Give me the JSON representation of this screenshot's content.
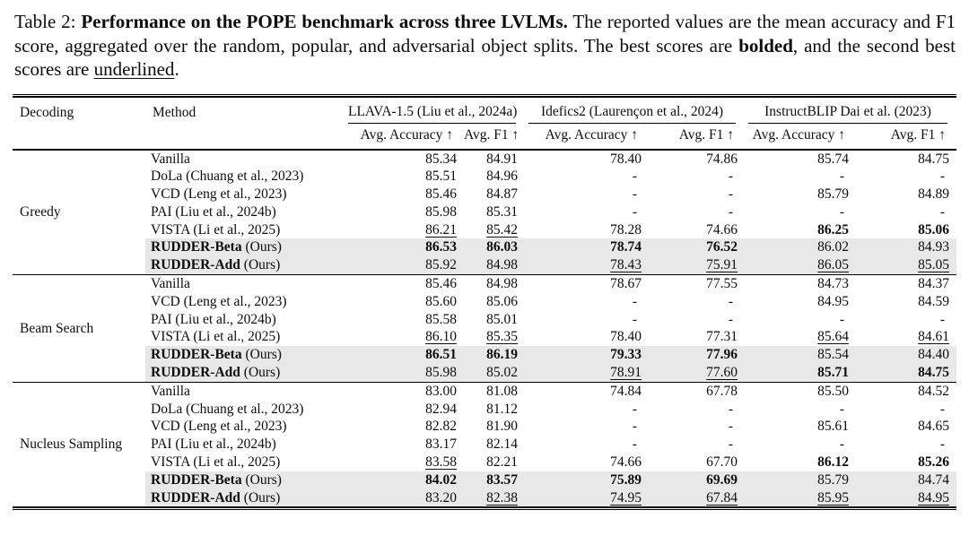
{
  "caption": {
    "segments": [
      {
        "text": "Table 2: "
      },
      {
        "text": "Performance on the POPE benchmark across three LVLMs."
      },
      {
        "text": " The reported values are the mean accuracy and F1 score, aggregated over the random, popular, and adversarial object splits. The best scores are "
      },
      {
        "text": "bolded"
      },
      {
        "text": ", and the second best scores are "
      },
      {
        "text": "underlined"
      },
      {
        "text": "."
      }
    ]
  },
  "table": {
    "header": {
      "decoding": "Decoding",
      "method": "Method",
      "model_groups": [
        {
          "label": "LLAVA-1.5 (Liu et al., 2024a)"
        },
        {
          "label": "Idefics2 (Laurençon et al., 2024)"
        },
        {
          "label": "InstructBLIP Dai et al. (2023)"
        }
      ],
      "metric_accuracy": "Avg. Accuracy ↑",
      "metric_f1": "Avg. F1 ↑"
    },
    "legend": {
      "best": "bold",
      "second_best": "underline"
    },
    "groups": [
      {
        "label": "Greedy",
        "rows": [
          {
            "method": "Vanilla",
            "values": [
              "85.34",
              "84.91",
              "78.40",
              "74.86",
              "85.74",
              "84.75"
            ],
            "marks": [
              "p",
              "p",
              "p",
              "p",
              "p",
              "p"
            ]
          },
          {
            "method": "DoLa (Chuang et al., 2023)",
            "values": [
              "85.51",
              "84.96",
              "-",
              "-",
              "-",
              "-"
            ],
            "marks": [
              "p",
              "p",
              "p",
              "p",
              "p",
              "p"
            ]
          },
          {
            "method": "VCD (Leng et al., 2023)",
            "values": [
              "85.46",
              "84.87",
              "-",
              "-",
              "85.79",
              "84.89"
            ],
            "marks": [
              "p",
              "p",
              "p",
              "p",
              "p",
              "p"
            ]
          },
          {
            "method": "PAI (Liu et al., 2024b)",
            "values": [
              "85.98",
              "85.31",
              "-",
              "-",
              "-",
              "-"
            ],
            "marks": [
              "p",
              "p",
              "p",
              "p",
              "p",
              "p"
            ]
          },
          {
            "method": "VISTA (Li et al., 2025)",
            "values": [
              "86.21",
              "85.42",
              "78.28",
              "74.66",
              "86.25",
              "85.06"
            ],
            "marks": [
              "u",
              "u",
              "p",
              "p",
              "b",
              "b"
            ]
          },
          {
            "method_bold": "RUDDER-Beta",
            "method": " (Ours)",
            "highlight": true,
            "values": [
              "86.53",
              "86.03",
              "78.74",
              "76.52",
              "86.02",
              "84.93"
            ],
            "marks": [
              "b",
              "b",
              "b",
              "b",
              "p",
              "p"
            ]
          },
          {
            "method_bold": "RUDDER-Add",
            "method": " (Ours)",
            "highlight": true,
            "values": [
              "85.92",
              "84.98",
              "78.43",
              "75.91",
              "86.05",
              "85.05"
            ],
            "marks": [
              "p",
              "p",
              "u",
              "u",
              "u",
              "u"
            ]
          }
        ]
      },
      {
        "label": "Beam Search",
        "rows": [
          {
            "method": "Vanilla",
            "values": [
              "85.46",
              "84.98",
              "78.67",
              "77.55",
              "84.73",
              "84.37"
            ],
            "marks": [
              "p",
              "p",
              "p",
              "p",
              "p",
              "p"
            ]
          },
          {
            "method": "VCD (Leng et al., 2023)",
            "values": [
              "85.60",
              "85.06",
              "-",
              "-",
              "84.95",
              "84.59"
            ],
            "marks": [
              "p",
              "p",
              "p",
              "p",
              "p",
              "p"
            ]
          },
          {
            "method": "PAI (Liu et al., 2024b)",
            "values": [
              "85.58",
              "85.01",
              "-",
              "-",
              "-",
              "-"
            ],
            "marks": [
              "p",
              "p",
              "p",
              "p",
              "p",
              "p"
            ]
          },
          {
            "method": "VISTA (Li et al., 2025)",
            "values": [
              "86.10",
              "85.35",
              "78.40",
              "77.31",
              "85.64",
              "84.61"
            ],
            "marks": [
              "u",
              "u",
              "p",
              "p",
              "u",
              "u"
            ]
          },
          {
            "method_bold": "RUDDER-Beta",
            "method": " (Ours)",
            "highlight": true,
            "values": [
              "86.51",
              "86.19",
              "79.33",
              "77.96",
              "85.54",
              "84.40"
            ],
            "marks": [
              "b",
              "b",
              "b",
              "b",
              "p",
              "p"
            ]
          },
          {
            "method_bold": "RUDDER-Add",
            "method": " (Ours)",
            "highlight": true,
            "values": [
              "85.98",
              "85.02",
              "78.91",
              "77.60",
              "85.71",
              "84.75"
            ],
            "marks": [
              "p",
              "p",
              "u",
              "u",
              "b",
              "b"
            ]
          }
        ]
      },
      {
        "label": "Nucleus Sampling",
        "rows": [
          {
            "method": "Vanilla",
            "values": [
              "83.00",
              "81.08",
              "74.84",
              "67.78",
              "85.50",
              "84.52"
            ],
            "marks": [
              "p",
              "p",
              "p",
              "p",
              "p",
              "p"
            ]
          },
          {
            "method": "DoLa (Chuang et al., 2023)",
            "values": [
              "82.94",
              "81.12",
              "-",
              "-",
              "-",
              "-"
            ],
            "marks": [
              "p",
              "p",
              "p",
              "p",
              "p",
              "p"
            ]
          },
          {
            "method": "VCD (Leng et al., 2023)",
            "values": [
              "82.82",
              "81.90",
              "-",
              "-",
              "85.61",
              "84.65"
            ],
            "marks": [
              "p",
              "p",
              "p",
              "p",
              "p",
              "p"
            ]
          },
          {
            "method": "PAI (Liu et al., 2024b)",
            "values": [
              "83.17",
              "82.14",
              "-",
              "-",
              "-",
              "-"
            ],
            "marks": [
              "p",
              "p",
              "p",
              "p",
              "p",
              "p"
            ]
          },
          {
            "method": "VISTA (Li et al., 2025)",
            "values": [
              "83.58",
              "82.21",
              "74.66",
              "67.70",
              "86.12",
              "85.26"
            ],
            "marks": [
              "u",
              "p",
              "p",
              "p",
              "b",
              "b"
            ]
          },
          {
            "method_bold": "RUDDER-Beta",
            "method": " (Ours)",
            "highlight": true,
            "values": [
              "84.02",
              "83.57",
              "75.89",
              "69.69",
              "85.79",
              "84.74"
            ],
            "marks": [
              "b",
              "b",
              "b",
              "b",
              "p",
              "p"
            ]
          },
          {
            "method_bold": "RUDDER-Add",
            "method": " (Ours)",
            "highlight": true,
            "values": [
              "83.20",
              "82.38",
              "74.95",
              "67.84",
              "85.95",
              "84.95"
            ],
            "marks": [
              "p",
              "u",
              "u",
              "u",
              "u",
              "u"
            ]
          }
        ]
      }
    ]
  }
}
